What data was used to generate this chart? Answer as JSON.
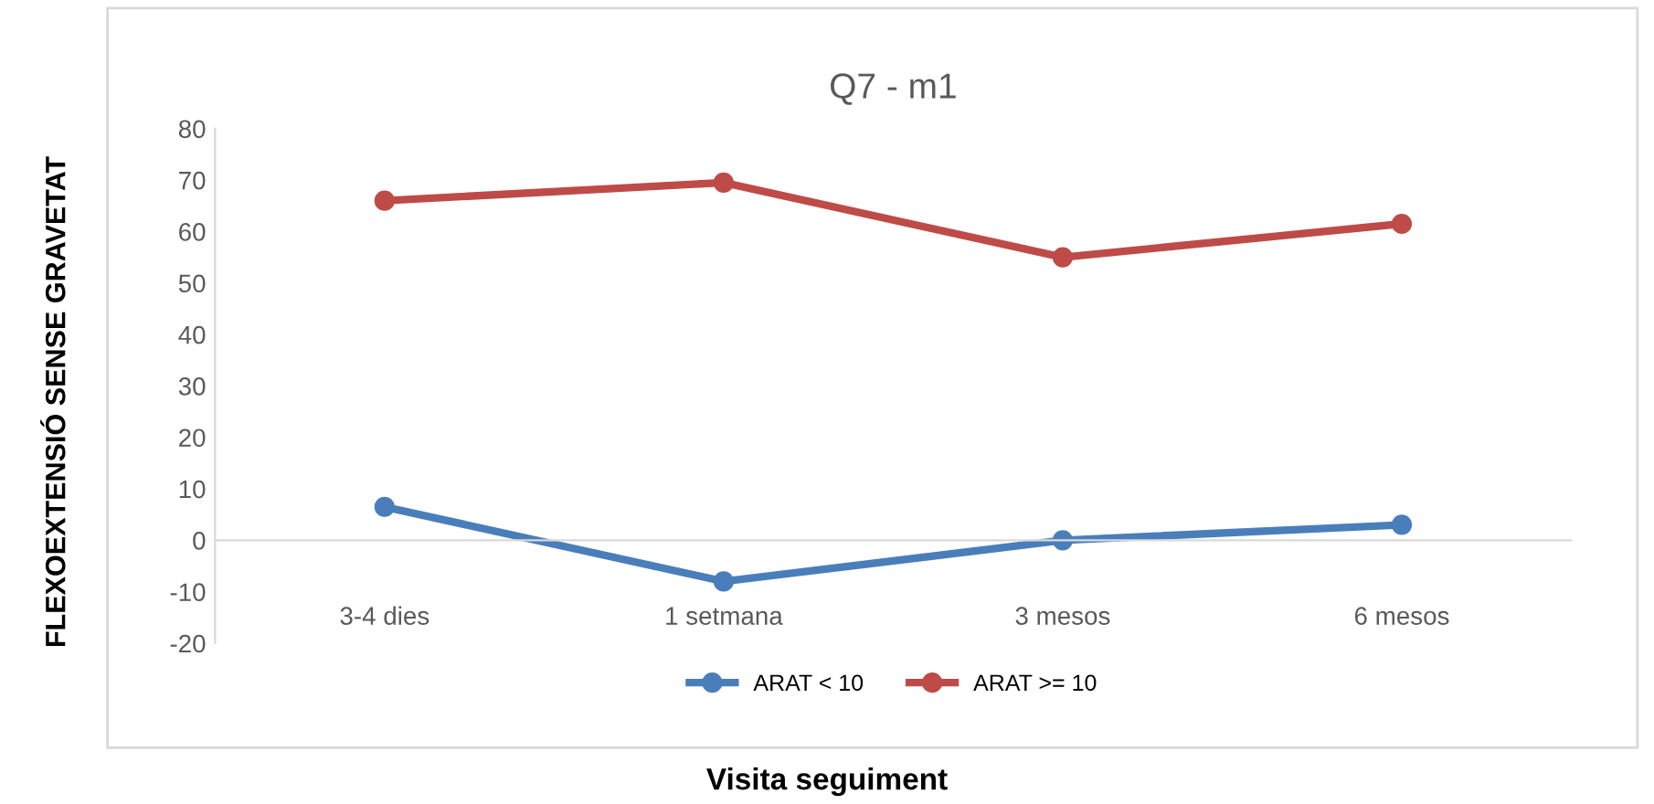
{
  "chart_data": {
    "type": "line",
    "title": "Q7 - m1",
    "xlabel": "Visita seguiment",
    "ylabel": "FLEXOEXTENSIÓ SENSE GRAVETAT",
    "categories": [
      "3-4 dies",
      "1 setmana",
      "3 mesos",
      "6 mesos"
    ],
    "series": [
      {
        "name": "ARAT < 10",
        "color": "#4a7ebb",
        "values": [
          6.5,
          -8,
          0,
          3
        ]
      },
      {
        "name": "ARAT >= 10",
        "color": "#be4b48",
        "values": [
          66,
          69.5,
          55,
          61.5
        ]
      }
    ],
    "ylim": [
      -20,
      80
    ],
    "yticks": [
      -20,
      -10,
      0,
      10,
      20,
      30,
      40,
      50,
      60,
      70,
      80
    ],
    "grid": false,
    "legend": "bottom",
    "marker": "circle",
    "line_style": "solid"
  }
}
